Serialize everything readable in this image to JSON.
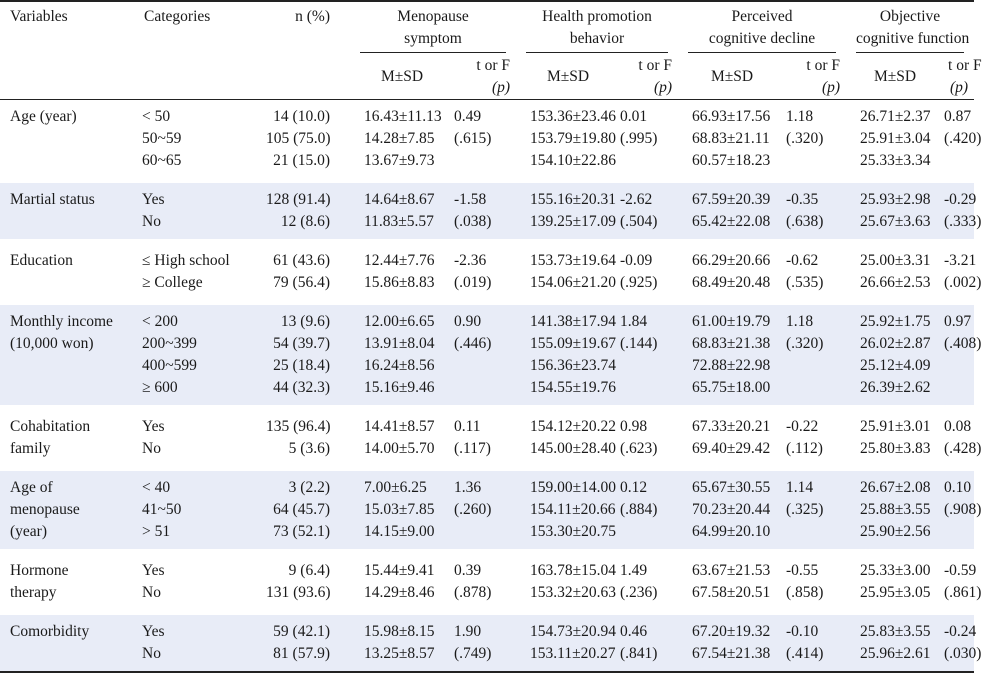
{
  "headers": {
    "variables": "Variables",
    "categories": "Categories",
    "n": "n (%)",
    "groups": [
      {
        "line1": "Menopause",
        "line2": "symptom"
      },
      {
        "line1": "Health promotion",
        "line2": "behavior"
      },
      {
        "line1": "Perceived",
        "line2": "cognitive decline"
      },
      {
        "line1": "Objective",
        "line2": "cognitive function"
      }
    ],
    "msd": "M±SD",
    "t_or_f": "t or F",
    "p": "(p)"
  },
  "rows": [
    {
      "variable": [
        "Age (year)"
      ],
      "categories": [
        "< 50",
        "50~59",
        "60~65"
      ],
      "n": [
        "14 (10.0)",
        "105 (75.0)",
        "21 (15.0)"
      ],
      "ms_msd": [
        "16.43±11.13",
        "14.28±7.85",
        "13.67±9.73"
      ],
      "ms_t": [
        "0.49",
        "(.615)"
      ],
      "hp_msd": [
        "153.36±23.46",
        "153.79±19.80",
        "154.10±22.86"
      ],
      "hp_t": [
        "0.01",
        "(.995)"
      ],
      "pc_msd": [
        "66.93±17.56",
        "68.83±21.11",
        "60.57±18.23"
      ],
      "pc_t": [
        "1.18",
        "(.320)"
      ],
      "oc_msd": [
        "26.71±2.37",
        "25.91±3.04",
        "25.33±3.34"
      ],
      "oc_t": [
        "0.87",
        "(.420)"
      ]
    },
    {
      "variable": [
        "Martial status"
      ],
      "categories": [
        "Yes",
        "No"
      ],
      "n": [
        "128 (91.4)",
        "12 (8.6)"
      ],
      "ms_msd": [
        "14.64±8.67",
        "11.83±5.57"
      ],
      "ms_t": [
        "-1.58",
        "(.038)"
      ],
      "hp_msd": [
        "155.16±20.31",
        "139.25±17.09"
      ],
      "hp_t": [
        "-2.62",
        "(.504)"
      ],
      "pc_msd": [
        "67.59±20.39",
        "65.42±22.08"
      ],
      "pc_t": [
        "-0.35",
        "(.638)"
      ],
      "oc_msd": [
        "25.93±2.98",
        "25.67±3.63"
      ],
      "oc_t": [
        "-0.29",
        "(.333)"
      ]
    },
    {
      "variable": [
        "Education"
      ],
      "categories": [
        "≤ High school",
        "≥ College"
      ],
      "n": [
        "61 (43.6)",
        "79 (56.4)"
      ],
      "ms_msd": [
        "12.44±7.76",
        "15.86±8.83"
      ],
      "ms_t": [
        "-2.36",
        "(.019)"
      ],
      "hp_msd": [
        "153.73±19.64",
        "154.06±21.20"
      ],
      "hp_t": [
        "-0.09",
        "(.925)"
      ],
      "pc_msd": [
        "66.29±20.66",
        "68.49±20.48"
      ],
      "pc_t": [
        "-0.62",
        "(.535)"
      ],
      "oc_msd": [
        "25.00±3.31",
        "26.66±2.53"
      ],
      "oc_t": [
        "-3.21",
        "(.002)"
      ]
    },
    {
      "variable": [
        "Monthly income",
        "(10,000 won)"
      ],
      "categories": [
        "< 200",
        "200~399",
        "400~599",
        "≥ 600"
      ],
      "n": [
        "13 (9.6)",
        "54 (39.7)",
        "25 (18.4)",
        "44 (32.3)"
      ],
      "ms_msd": [
        "12.00±6.65",
        "13.91±8.04",
        "16.24±8.56",
        "15.16±9.46"
      ],
      "ms_t": [
        "0.90",
        "(.446)"
      ],
      "hp_msd": [
        "141.38±17.94",
        "155.09±19.67",
        "156.36±23.74",
        "154.55±19.76"
      ],
      "hp_t": [
        "1.84",
        "(.144)"
      ],
      "pc_msd": [
        "61.00±19.79",
        "68.83±21.38",
        "72.88±22.98",
        "65.75±18.00"
      ],
      "pc_t": [
        "1.18",
        "(.320)"
      ],
      "oc_msd": [
        "25.92±1.75",
        "26.02±2.87",
        "25.12±4.09",
        "26.39±2.62"
      ],
      "oc_t": [
        "0.97",
        "(.408)"
      ]
    },
    {
      "variable": [
        "Cohabitation",
        "family"
      ],
      "categories": [
        "Yes",
        "No"
      ],
      "n": [
        "135 (96.4)",
        "5 (3.6)"
      ],
      "ms_msd": [
        "14.41±8.57",
        "14.00±5.70"
      ],
      "ms_t": [
        "0.11",
        "(.117)"
      ],
      "hp_msd": [
        "154.12±20.22",
        "145.00±28.40"
      ],
      "hp_t": [
        "0.98",
        "(.623)"
      ],
      "pc_msd": [
        "67.33±20.21",
        "69.40±29.42"
      ],
      "pc_t": [
        "-0.22",
        "(.112)"
      ],
      "oc_msd": [
        "25.91±3.01",
        "25.80±3.83"
      ],
      "oc_t": [
        "0.08",
        "(.428)"
      ]
    },
    {
      "variable": [
        "Age of",
        "menopause",
        "(year)"
      ],
      "categories": [
        "< 40",
        "41~50",
        "> 51"
      ],
      "n": [
        "3 (2.2)",
        "64 (45.7)",
        "73 (52.1)"
      ],
      "ms_msd": [
        "7.00±6.25",
        "15.03±7.85",
        "14.15±9.00"
      ],
      "ms_t": [
        "1.36",
        "(.260)"
      ],
      "hp_msd": [
        "159.00±14.00",
        "154.11±20.66",
        "153.30±20.75"
      ],
      "hp_t": [
        "0.12",
        "(.884)"
      ],
      "pc_msd": [
        "65.67±30.55",
        "70.23±20.44",
        "64.99±20.10"
      ],
      "pc_t": [
        "1.14",
        "(.325)"
      ],
      "oc_msd": [
        "26.67±2.08",
        "25.88±3.55",
        "25.90±2.56"
      ],
      "oc_t": [
        "0.10",
        "(.908)"
      ]
    },
    {
      "variable": [
        "Hormone",
        "therapy"
      ],
      "categories": [
        "Yes",
        "No"
      ],
      "n": [
        "9 (6.4)",
        "131 (93.6)"
      ],
      "ms_msd": [
        "15.44±9.41",
        "14.29±8.46"
      ],
      "ms_t": [
        "0.39",
        "(.878)"
      ],
      "hp_msd": [
        "163.78±15.04",
        "153.32±20.63"
      ],
      "hp_t": [
        "1.49",
        "(.236)"
      ],
      "pc_msd": [
        "63.67±21.53",
        "67.58±20.51"
      ],
      "pc_t": [
        "-0.55",
        "(.858)"
      ],
      "oc_msd": [
        "25.33±3.00",
        "25.95±3.05"
      ],
      "oc_t": [
        "-0.59",
        "(.861)"
      ]
    },
    {
      "variable": [
        "Comorbidity"
      ],
      "categories": [
        "Yes",
        "No"
      ],
      "n": [
        "59 (42.1)",
        "81 (57.9)"
      ],
      "ms_msd": [
        "15.98±8.15",
        "13.25±8.57"
      ],
      "ms_t": [
        "1.90",
        "(.749)"
      ],
      "hp_msd": [
        "154.73±20.94",
        "153.11±20.27"
      ],
      "hp_t": [
        "0.46",
        "(.841)"
      ],
      "pc_msd": [
        "67.20±19.32",
        "67.54±21.38"
      ],
      "pc_t": [
        "-0.10",
        "(.414)"
      ],
      "oc_msd": [
        "25.83±3.55",
        "25.96±2.61"
      ],
      "oc_t": [
        "-0.24",
        "(.030)"
      ]
    }
  ]
}
